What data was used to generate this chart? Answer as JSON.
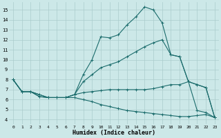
{
  "xlabel": "Humidex (Indice chaleur)",
  "bg_color": "#cce8e8",
  "grid_color": "#aacccc",
  "line_color": "#1a6b6b",
  "xlim": [
    -0.5,
    23.5
  ],
  "ylim": [
    3.5,
    15.8
  ],
  "yticks": [
    4,
    5,
    6,
    7,
    8,
    9,
    10,
    11,
    12,
    13,
    14,
    15
  ],
  "xticks": [
    0,
    1,
    2,
    3,
    4,
    5,
    6,
    7,
    8,
    9,
    10,
    11,
    12,
    13,
    14,
    15,
    16,
    17,
    18,
    19,
    20,
    21,
    22,
    23
  ],
  "line1_x": [
    0,
    1,
    2,
    3,
    4,
    5,
    6,
    7,
    8,
    9,
    10,
    11,
    12,
    13,
    14,
    15,
    16,
    17,
    18,
    19,
    20,
    21,
    22,
    23
  ],
  "line1_y": [
    8.0,
    6.8,
    6.8,
    6.5,
    6.2,
    6.2,
    6.2,
    6.5,
    8.5,
    10.0,
    12.3,
    12.2,
    12.5,
    13.5,
    14.3,
    15.3,
    15.0,
    13.7,
    10.5,
    10.3,
    7.8,
    4.9,
    4.7,
    4.2
  ],
  "line2_x": [
    0,
    1,
    2,
    3,
    4,
    5,
    6,
    7,
    8,
    9,
    10,
    11,
    12,
    13,
    14,
    15,
    16,
    17,
    18,
    19,
    20,
    21,
    22,
    23
  ],
  "line2_y": [
    8.0,
    6.8,
    6.8,
    6.5,
    6.2,
    6.2,
    6.2,
    6.5,
    7.8,
    8.5,
    9.2,
    9.5,
    9.8,
    10.3,
    10.8,
    11.3,
    11.7,
    12.0,
    10.5,
    10.3,
    7.8,
    7.5,
    7.2,
    4.2
  ],
  "line3_x": [
    0,
    1,
    2,
    3,
    4,
    5,
    6,
    7,
    8,
    9,
    10,
    11,
    12,
    13,
    14,
    15,
    16,
    17,
    18,
    19,
    20,
    21,
    22,
    23
  ],
  "line3_y": [
    8.0,
    6.8,
    6.8,
    6.3,
    6.2,
    6.2,
    6.2,
    6.5,
    6.7,
    6.8,
    6.9,
    7.0,
    7.0,
    7.0,
    7.0,
    7.0,
    7.1,
    7.3,
    7.5,
    7.5,
    7.8,
    7.5,
    7.2,
    4.2
  ],
  "line4_x": [
    0,
    1,
    2,
    3,
    4,
    5,
    6,
    7,
    8,
    9,
    10,
    11,
    12,
    13,
    14,
    15,
    16,
    17,
    18,
    19,
    20,
    21,
    22,
    23
  ],
  "line4_y": [
    8.0,
    6.8,
    6.8,
    6.3,
    6.2,
    6.2,
    6.2,
    6.2,
    6.0,
    5.8,
    5.5,
    5.3,
    5.1,
    4.9,
    4.8,
    4.7,
    4.6,
    4.5,
    4.4,
    4.3,
    4.3,
    4.4,
    4.5,
    4.2
  ]
}
